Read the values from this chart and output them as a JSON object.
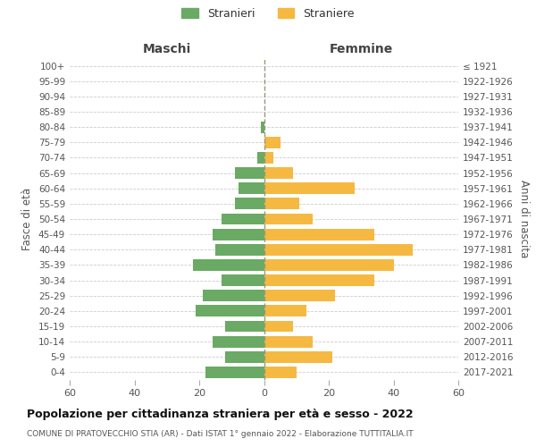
{
  "age_groups": [
    "0-4",
    "5-9",
    "10-14",
    "15-19",
    "20-24",
    "25-29",
    "30-34",
    "35-39",
    "40-44",
    "45-49",
    "50-54",
    "55-59",
    "60-64",
    "65-69",
    "70-74",
    "75-79",
    "80-84",
    "85-89",
    "90-94",
    "95-99",
    "100+"
  ],
  "birth_years": [
    "2017-2021",
    "2012-2016",
    "2007-2011",
    "2002-2006",
    "1997-2001",
    "1992-1996",
    "1987-1991",
    "1982-1986",
    "1977-1981",
    "1972-1976",
    "1967-1971",
    "1962-1966",
    "1957-1961",
    "1952-1956",
    "1947-1951",
    "1942-1946",
    "1937-1941",
    "1932-1936",
    "1927-1931",
    "1922-1926",
    "≤ 1921"
  ],
  "maschi": [
    18,
    12,
    16,
    12,
    21,
    19,
    13,
    22,
    15,
    16,
    13,
    9,
    8,
    9,
    2,
    0,
    1,
    0,
    0,
    0,
    0
  ],
  "femmine": [
    10,
    21,
    15,
    9,
    13,
    22,
    34,
    40,
    46,
    34,
    15,
    11,
    28,
    9,
    3,
    5,
    0,
    0,
    0,
    0,
    0
  ],
  "male_color": "#6aaa64",
  "female_color": "#f5b942",
  "male_label": "Stranieri",
  "female_label": "Straniere",
  "title": "Popolazione per cittadinanza straniera per età e sesso - 2022",
  "subtitle": "COMUNE DI PRATOVECCHIO STIA (AR) - Dati ISTAT 1° gennaio 2022 - Elaborazione TUTTITALIA.IT",
  "left_header": "Maschi",
  "right_header": "Femmine",
  "left_ylabel": "Fasce di età",
  "right_ylabel": "Anni di nascita",
  "xlim": 60,
  "background_color": "#ffffff",
  "grid_color": "#cccccc"
}
